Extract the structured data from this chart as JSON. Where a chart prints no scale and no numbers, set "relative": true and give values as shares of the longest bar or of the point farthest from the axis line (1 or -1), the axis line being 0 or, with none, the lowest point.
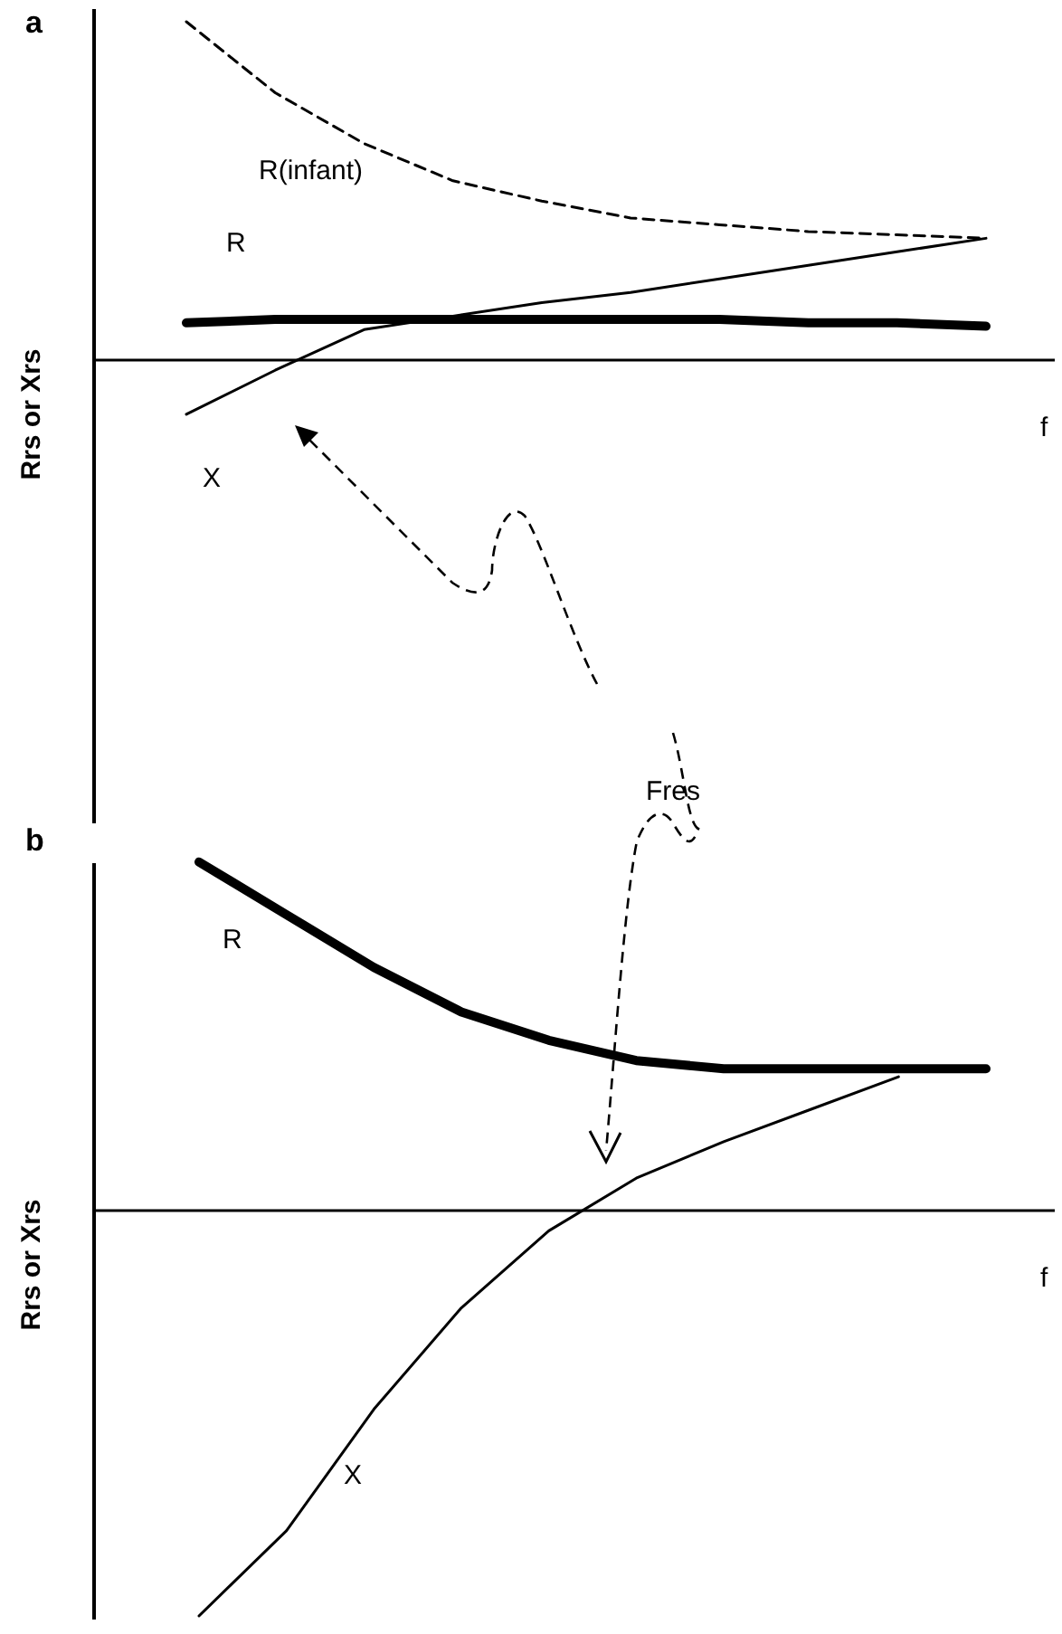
{
  "chart_data": [
    {
      "type": "line",
      "title": "a",
      "ylabel": "Rrs or Xrs",
      "xlabel": "f",
      "relative": true,
      "annotations": [
        "Fres"
      ],
      "categories": [
        null,
        null,
        null,
        null,
        null,
        null,
        null,
        null,
        null,
        null
      ],
      "series": [
        {
          "name": "R(infant)",
          "color": "#000000",
          "line_style": "dashed",
          "values": [
            1,
            0.79,
            0.64,
            0.53,
            0.47,
            0.42,
            0.4,
            0.38,
            0.37,
            0.36
          ]
        },
        {
          "name": "R",
          "color": "#000000",
          "line_style": "solid",
          "values": [
            0.11,
            0.12,
            0.12,
            0.12,
            0.12,
            0.12,
            0.12,
            0.11,
            0.11,
            0.1
          ]
        },
        {
          "name": "X",
          "color": "#000000",
          "line_style": "solid",
          "values": [
            -0.16,
            -0.03,
            0.09,
            0.13,
            0.17,
            0.2,
            0.24,
            0.28,
            0.32,
            0.36
          ]
        }
      ]
    },
    {
      "type": "line",
      "title": "b",
      "ylabel": "Rrs or Xrs",
      "xlabel": "f",
      "relative": true,
      "categories": [
        null,
        null,
        null,
        null,
        null,
        null,
        null,
        null,
        null,
        null
      ],
      "series": [
        {
          "name": "R",
          "color": "#000000",
          "line_style": "solid",
          "values": [
            0.86,
            0.73,
            0.6,
            0.49,
            0.42,
            0.37,
            0.35,
            0.35,
            0.35,
            0.35
          ]
        },
        {
          "name": "X",
          "color": "#000000",
          "line_style": "solid",
          "values": [
            -1.0,
            -0.79,
            -0.49,
            -0.24,
            -0.05,
            0.08,
            0.17,
            0.25,
            0.33,
            null
          ]
        }
      ]
    }
  ]
}
